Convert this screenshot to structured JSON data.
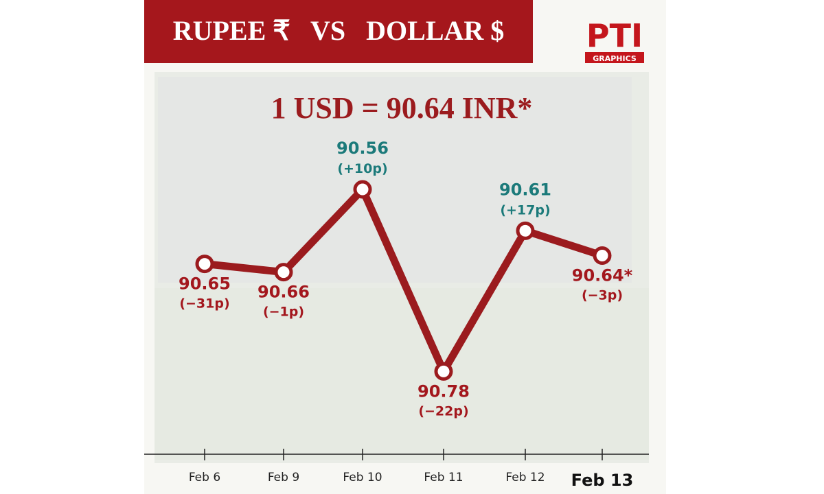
{
  "logo": {
    "text": "PTI",
    "caption": "GRAPHICS"
  },
  "chart_data": {
    "type": "line",
    "title": "RUPEE ₹   VS   DOLLAR $",
    "subtitle": "1 USD = 90.64 INR*",
    "categories": [
      "Feb 6",
      "Feb 9",
      "Feb 10",
      "Feb 11",
      "Feb 12",
      "Feb 13"
    ],
    "values": [
      90.65,
      90.66,
      90.56,
      90.78,
      90.61,
      90.64
    ],
    "value_labels": [
      "90.65",
      "90.66",
      "90.56",
      "90.78",
      "90.61",
      "90.64*"
    ],
    "change_labels": [
      "(−31p)",
      "(−1p)",
      "(+10p)",
      "(−22p)",
      "(+17p)",
      "(−3p)"
    ],
    "label_colors": [
      "#a3171d",
      "#a3171d",
      "#1b7a7a",
      "#a3171d",
      "#1b7a7a",
      "#a3171d"
    ],
    "label_positions": [
      "below",
      "below",
      "above",
      "below",
      "above",
      "below"
    ],
    "color": "#9b1b1e",
    "ylim": [
      90.4,
      90.88
    ],
    "y_inverted": true
  }
}
